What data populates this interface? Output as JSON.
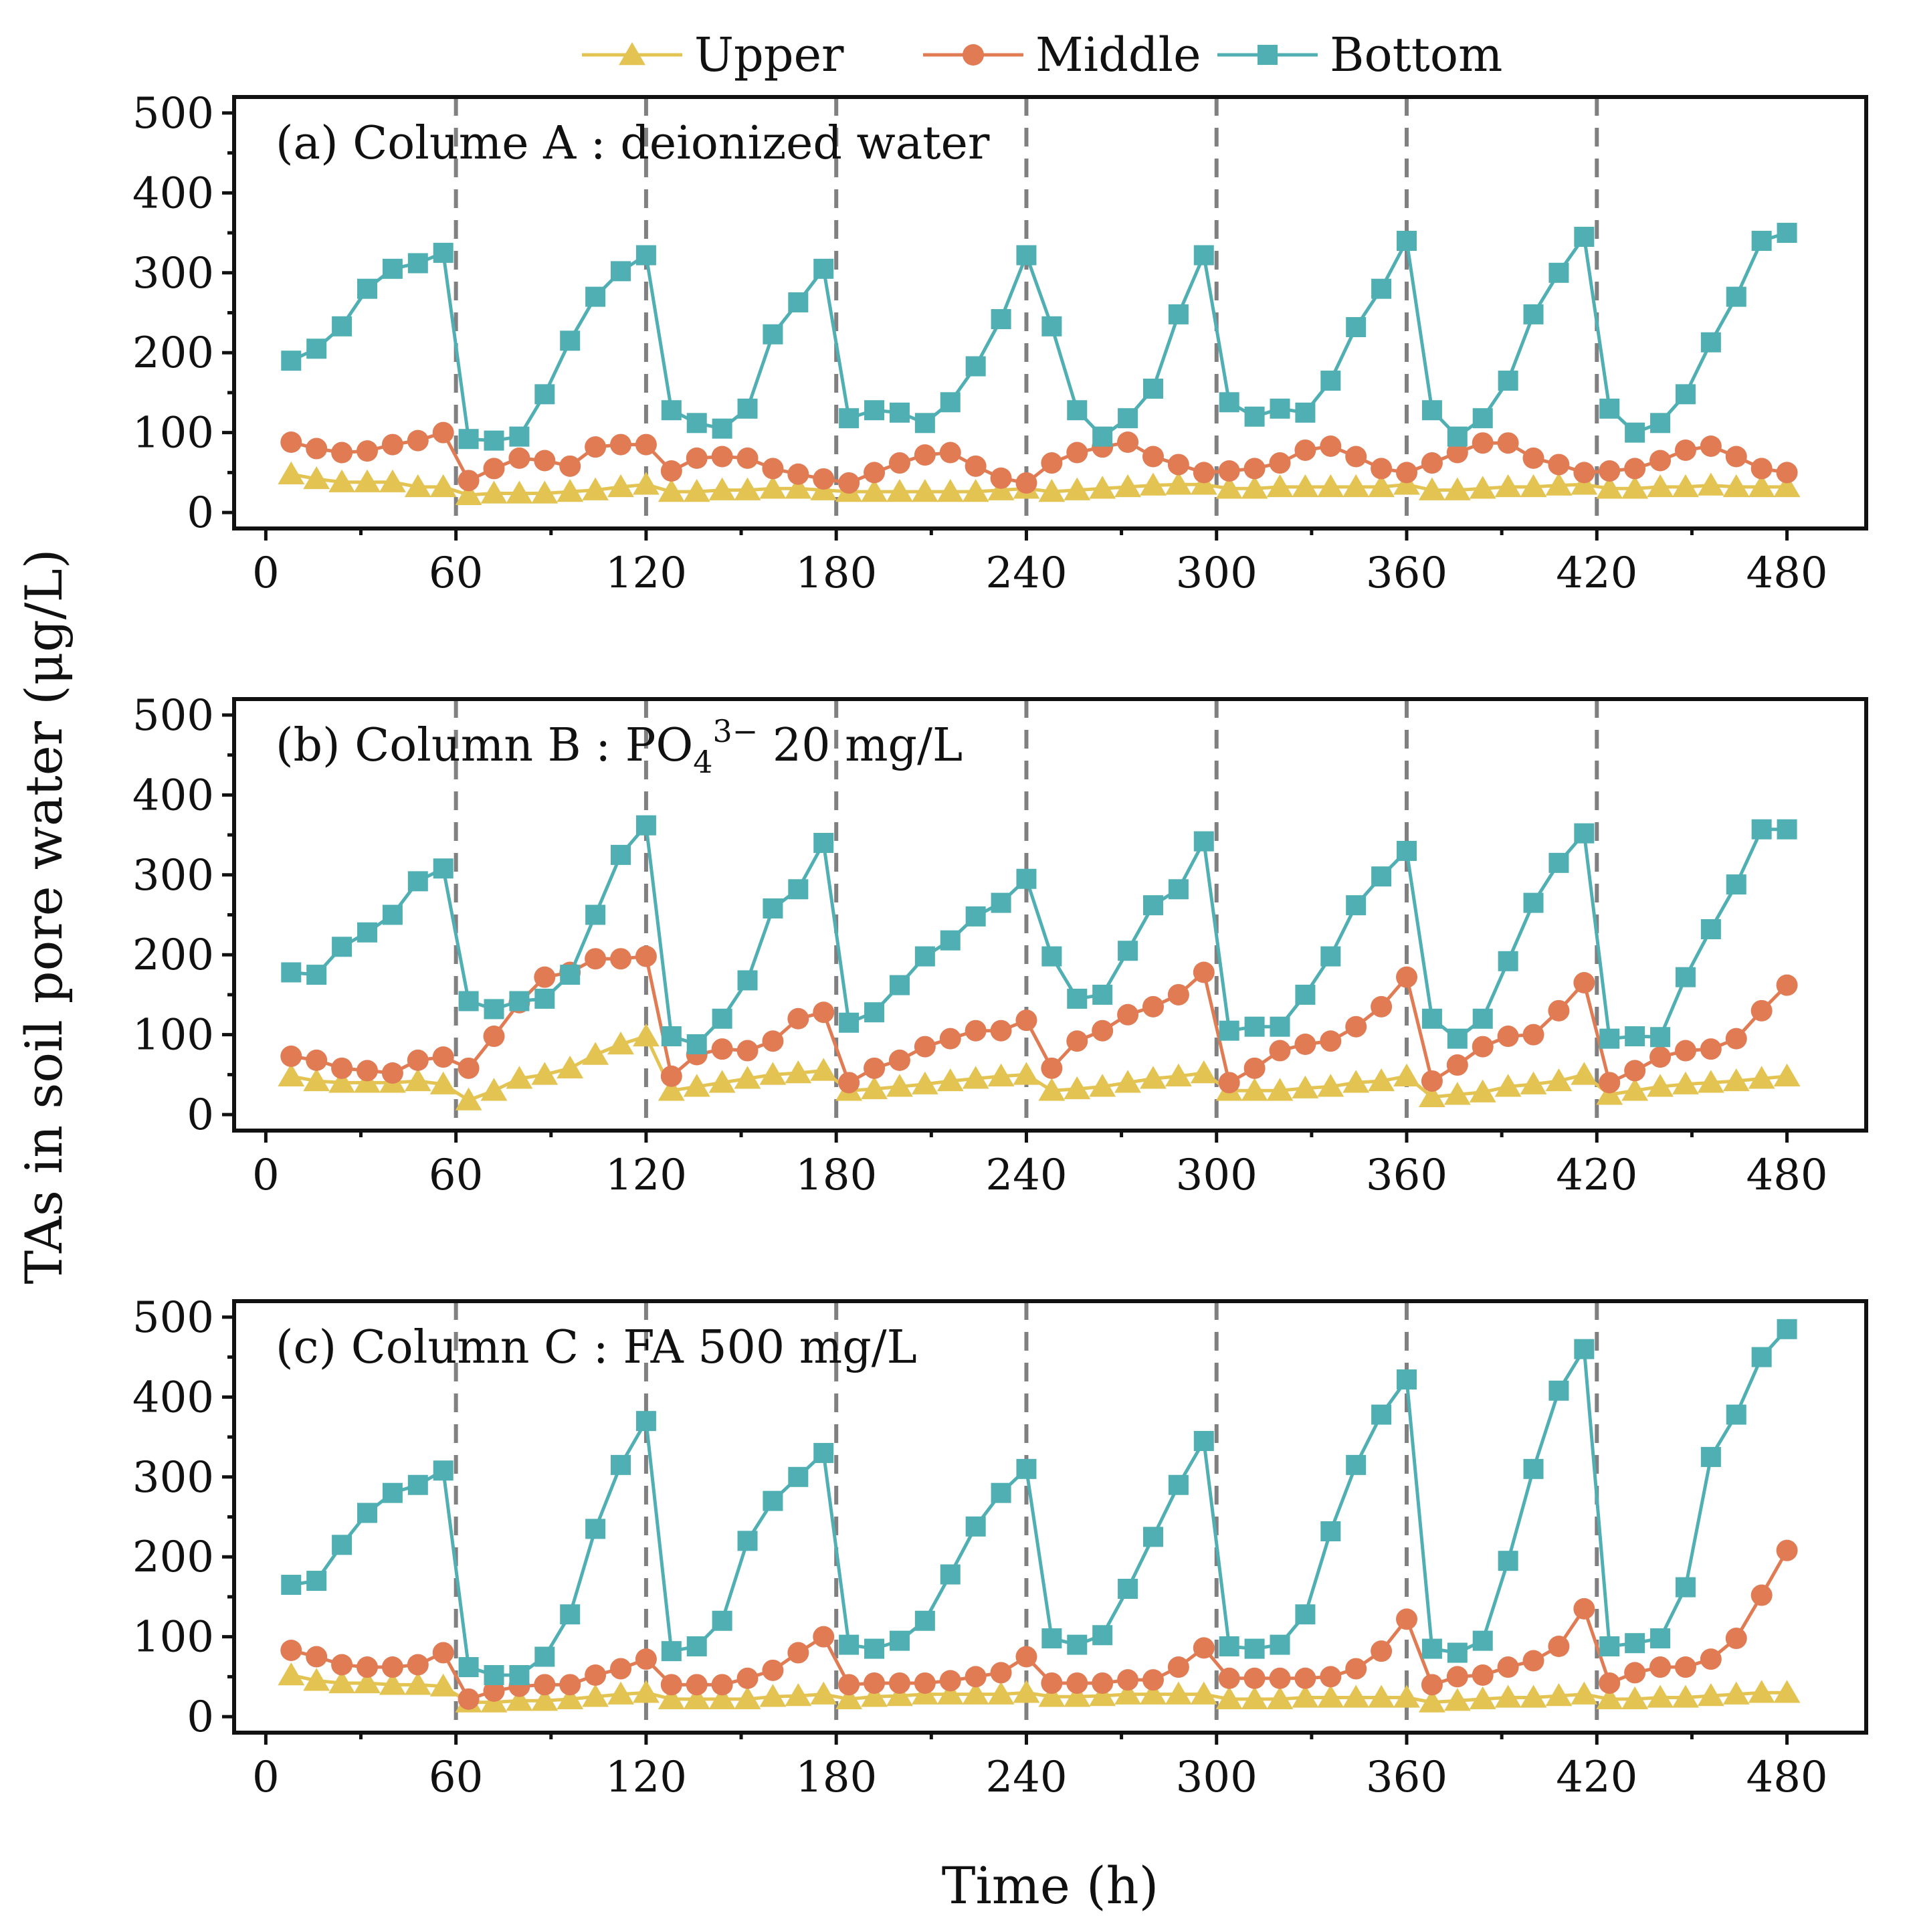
{
  "chart_data": [
    {
      "type": "line",
      "title": "(a) Colume A : deionized water",
      "xlabel": "Time (h)",
      "ylabel": "TAs in soil pore water (μg/L)",
      "xlim": [
        -10,
        505
      ],
      "ylim": [
        -20,
        520
      ],
      "x_ticks": [
        0,
        60,
        120,
        180,
        240,
        300,
        360,
        420,
        480
      ],
      "y_ticks": [
        0,
        100,
        200,
        300,
        400,
        500
      ],
      "vlines": [
        60,
        120,
        180,
        240,
        300,
        360,
        420
      ],
      "x": [
        8,
        16,
        24,
        32,
        40,
        48,
        56,
        64,
        72,
        80,
        88,
        96,
        104,
        112,
        120,
        128,
        136,
        144,
        152,
        160,
        168,
        176,
        184,
        192,
        200,
        208,
        216,
        224,
        232,
        240,
        248,
        256,
        264,
        272,
        280,
        288,
        296,
        304,
        312,
        320,
        328,
        336,
        344,
        352,
        360,
        368,
        376,
        384,
        392,
        400,
        408,
        416,
        424,
        432,
        440,
        448,
        456,
        464,
        472,
        480
      ],
      "series": [
        {
          "name": "Upper",
          "color": "#E3C453",
          "marker": "triangle",
          "values": [
            48,
            42,
            38,
            38,
            38,
            32,
            32,
            22,
            24,
            24,
            24,
            26,
            28,
            32,
            35,
            26,
            26,
            28,
            28,
            30,
            30,
            28,
            26,
            26,
            26,
            26,
            26,
            26,
            28,
            30,
            26,
            28,
            30,
            32,
            34,
            35,
            35,
            30,
            30,
            32,
            32,
            32,
            32,
            32,
            35,
            28,
            28,
            30,
            32,
            32,
            34,
            35,
            30,
            30,
            32,
            32,
            34,
            32,
            32,
            32
          ]
        },
        {
          "name": "Middle",
          "color": "#E07B54",
          "marker": "circle",
          "values": [
            88,
            80,
            75,
            77,
            85,
            90,
            100,
            40,
            55,
            68,
            65,
            58,
            82,
            85,
            85,
            52,
            68,
            70,
            68,
            55,
            48,
            42,
            37,
            50,
            62,
            72,
            75,
            58,
            43,
            37,
            62,
            75,
            82,
            88,
            70,
            60,
            50,
            52,
            55,
            62,
            78,
            83,
            70,
            55,
            50,
            62,
            75,
            87,
            87,
            68,
            60,
            50,
            52,
            55,
            65,
            78,
            83,
            70,
            55,
            50
          ]
        },
        {
          "name": "Bottom",
          "color": "#4FAFB3",
          "marker": "square",
          "values": [
            190,
            205,
            233,
            280,
            305,
            312,
            325,
            92,
            90,
            95,
            148,
            215,
            270,
            302,
            322,
            128,
            112,
            105,
            130,
            223,
            263,
            305,
            118,
            128,
            125,
            112,
            138,
            183,
            242,
            322,
            233,
            128,
            95,
            118,
            155,
            248,
            322,
            138,
            120,
            130,
            125,
            165,
            232,
            280,
            340,
            128,
            95,
            118,
            165,
            248,
            300,
            345,
            130,
            100,
            112,
            148,
            213,
            270,
            340,
            350
          ]
        }
      ]
    },
    {
      "type": "line",
      "title": "(b) Column B : PO",
      "title_subscript": "4",
      "title_superscript": "3−",
      "title_suffix": " 20 mg/L",
      "xlabel": "Time (h)",
      "ylabel": "TAs in soil pore water (μg/L)",
      "xlim": [
        -10,
        505
      ],
      "ylim": [
        -20,
        520
      ],
      "x_ticks": [
        0,
        60,
        120,
        180,
        240,
        300,
        360,
        420,
        480
      ],
      "y_ticks": [
        0,
        100,
        200,
        300,
        400,
        500
      ],
      "vlines": [
        60,
        120,
        180,
        240,
        300,
        360,
        420
      ],
      "x": [
        8,
        16,
        24,
        32,
        40,
        48,
        56,
        64,
        72,
        80,
        88,
        96,
        104,
        112,
        120,
        128,
        136,
        144,
        152,
        160,
        168,
        176,
        184,
        192,
        200,
        208,
        216,
        224,
        232,
        240,
        248,
        256,
        264,
        272,
        280,
        288,
        296,
        304,
        312,
        320,
        328,
        336,
        344,
        352,
        360,
        368,
        376,
        384,
        392,
        400,
        408,
        416,
        424,
        432,
        440,
        448,
        456,
        464,
        472,
        480
      ],
      "series": [
        {
          "name": "Upper",
          "color": "#E3C453",
          "marker": "triangle",
          "values": [
            48,
            42,
            40,
            40,
            40,
            42,
            38,
            18,
            30,
            45,
            50,
            58,
            75,
            88,
            98,
            30,
            35,
            40,
            45,
            50,
            52,
            55,
            30,
            32,
            35,
            38,
            42,
            45,
            48,
            50,
            30,
            32,
            35,
            40,
            45,
            48,
            52,
            30,
            30,
            30,
            33,
            35,
            40,
            42,
            48,
            22,
            25,
            28,
            35,
            38,
            42,
            50,
            25,
            30,
            35,
            38,
            40,
            42,
            45,
            48
          ]
        },
        {
          "name": "Middle",
          "color": "#E07B54",
          "marker": "circle",
          "values": [
            73,
            68,
            58,
            55,
            52,
            68,
            72,
            58,
            98,
            140,
            172,
            178,
            195,
            195,
            198,
            48,
            75,
            82,
            80,
            92,
            120,
            128,
            40,
            58,
            68,
            85,
            95,
            105,
            105,
            118,
            58,
            92,
            105,
            125,
            135,
            150,
            178,
            40,
            58,
            80,
            88,
            92,
            110,
            135,
            172,
            42,
            62,
            85,
            98,
            100,
            130,
            165,
            40,
            55,
            72,
            80,
            82,
            95,
            130,
            162
          ]
        },
        {
          "name": "Bottom",
          "color": "#4FAFB3",
          "marker": "square",
          "values": [
            178,
            175,
            210,
            228,
            250,
            292,
            308,
            142,
            132,
            142,
            145,
            175,
            250,
            325,
            362,
            98,
            88,
            120,
            168,
            258,
            282,
            340,
            115,
            128,
            162,
            198,
            218,
            248,
            265,
            295,
            198,
            145,
            150,
            205,
            262,
            282,
            342,
            105,
            110,
            110,
            150,
            198,
            262,
            298,
            330,
            120,
            95,
            120,
            192,
            265,
            315,
            352,
            95,
            98,
            97,
            172,
            232,
            288,
            357,
            357
          ]
        }
      ]
    },
    {
      "type": "line",
      "title": "(c) Column C : FA 500 mg/L",
      "xlabel": "Time (h)",
      "ylabel": "TAs in soil pore water (μg/L)",
      "xlim": [
        -10,
        505
      ],
      "ylim": [
        -20,
        520
      ],
      "x_ticks": [
        0,
        60,
        120,
        180,
        240,
        300,
        360,
        420,
        480
      ],
      "y_ticks": [
        0,
        100,
        200,
        300,
        400,
        500
      ],
      "vlines": [
        60,
        120,
        180,
        240,
        300,
        360,
        420
      ],
      "x": [
        8,
        16,
        24,
        32,
        40,
        48,
        56,
        64,
        72,
        80,
        88,
        96,
        104,
        112,
        120,
        128,
        136,
        144,
        152,
        160,
        168,
        176,
        184,
        192,
        200,
        208,
        216,
        224,
        232,
        240,
        248,
        256,
        264,
        272,
        280,
        288,
        296,
        304,
        312,
        320,
        328,
        336,
        344,
        352,
        360,
        368,
        376,
        384,
        392,
        400,
        408,
        416,
        424,
        432,
        440,
        448,
        456,
        464,
        472,
        480
      ],
      "series": [
        {
          "name": "Upper",
          "color": "#E3C453",
          "marker": "triangle",
          "values": [
            52,
            45,
            42,
            42,
            40,
            40,
            38,
            18,
            18,
            20,
            20,
            22,
            25,
            28,
            30,
            22,
            22,
            22,
            22,
            25,
            26,
            28,
            22,
            25,
            26,
            28,
            28,
            28,
            28,
            30,
            25,
            25,
            26,
            28,
            28,
            28,
            28,
            22,
            22,
            22,
            24,
            24,
            24,
            24,
            24,
            18,
            20,
            22,
            24,
            24,
            26,
            28,
            22,
            22,
            24,
            24,
            26,
            28,
            30,
            30
          ]
        },
        {
          "name": "Middle",
          "color": "#E07B54",
          "marker": "circle",
          "values": [
            83,
            75,
            65,
            62,
            62,
            65,
            80,
            22,
            32,
            38,
            40,
            40,
            52,
            60,
            72,
            40,
            40,
            40,
            48,
            58,
            80,
            100,
            40,
            42,
            42,
            42,
            45,
            50,
            55,
            75,
            42,
            42,
            42,
            46,
            46,
            62,
            86,
            48,
            48,
            48,
            48,
            50,
            60,
            82,
            122,
            40,
            50,
            52,
            62,
            70,
            88,
            135,
            42,
            55,
            62,
            62,
            72,
            98,
            152,
            208
          ]
        },
        {
          "name": "Bottom",
          "color": "#4FAFB3",
          "marker": "square",
          "values": [
            165,
            170,
            215,
            255,
            280,
            290,
            308,
            62,
            52,
            52,
            75,
            128,
            235,
            315,
            370,
            82,
            88,
            120,
            220,
            270,
            300,
            330,
            90,
            85,
            95,
            120,
            178,
            238,
            280,
            310,
            98,
            90,
            102,
            160,
            225,
            290,
            345,
            88,
            85,
            90,
            128,
            232,
            315,
            378,
            422,
            85,
            80,
            95,
            195,
            310,
            408,
            460,
            88,
            92,
            98,
            162,
            325,
            378,
            450,
            485
          ]
        }
      ]
    }
  ],
  "legend": [
    {
      "label": "Upper",
      "color": "#E3C453",
      "marker": "triangle"
    },
    {
      "label": "Middle",
      "color": "#E07B54",
      "marker": "circle"
    },
    {
      "label": "Bottom",
      "color": "#4FAFB3",
      "marker": "square"
    }
  ],
  "shared_ylabel": "TAs in soil pore water (μg/L)",
  "shared_xlabel": "Time (h)"
}
